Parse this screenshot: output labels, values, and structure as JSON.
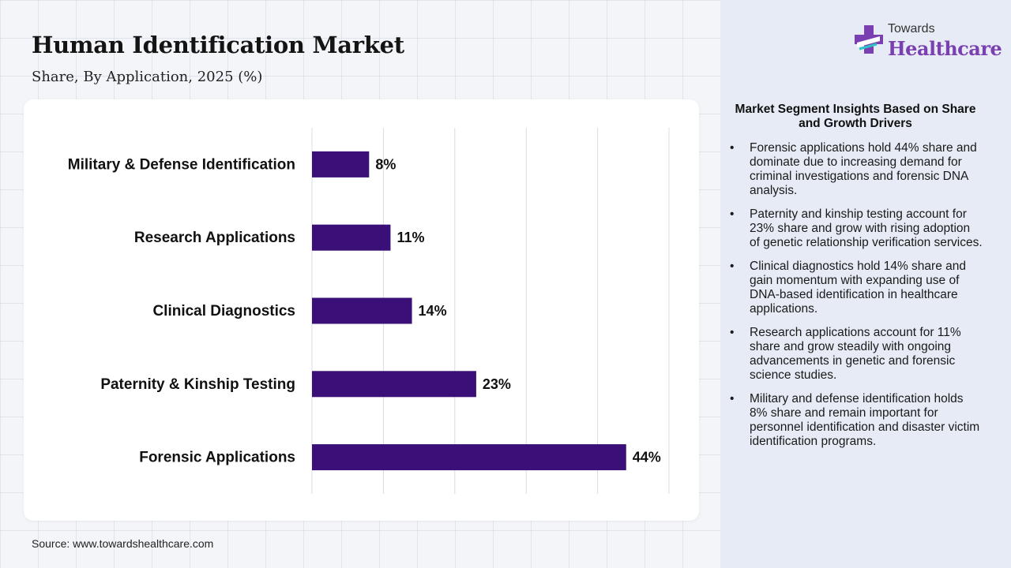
{
  "header": {
    "title": "Human Identification Market",
    "subtitle": "Share, By Application, 2025 (%)"
  },
  "logo": {
    "top_text": "Towards",
    "main_text": "Healthcare"
  },
  "chart_data": {
    "type": "bar",
    "orientation": "horizontal",
    "categories": [
      "Military & Defense Identification",
      "Research Applications",
      "Clinical Diagnostics",
      "Paternity & Kinship Testing",
      "Forensic Applications"
    ],
    "values": [
      8,
      11,
      14,
      23,
      44
    ],
    "value_labels": [
      "8%",
      "11%",
      "14%",
      "23%",
      "44%"
    ],
    "xlim": [
      0,
      50
    ],
    "grid": true,
    "bar_color": "#3a0f78"
  },
  "insights": {
    "title": "Market Segment Insights Based on Share and Growth Drivers",
    "items": [
      "Forensic applications hold 44% share and dominate due to increasing demand for criminal investigations and forensic DNA analysis.",
      "Paternity and kinship testing account for 23% share and grow with rising adoption of genetic relationship verification services.",
      "Clinical diagnostics hold 14% share and gain momentum with expanding use of DNA-based identification in healthcare applications.",
      "Research applications account for 11% share and grow steadily with ongoing advancements in genetic and forensic science studies.",
      "Military and defense identification holds 8% share and remain important for personnel identification and disaster victim identification programs."
    ]
  },
  "footer": {
    "source": "Source: www.towardshealthcare.com"
  },
  "colors": {
    "accent": "#7a3fb0",
    "bar": "#3a0f78",
    "panel": "#e6ebf5"
  }
}
